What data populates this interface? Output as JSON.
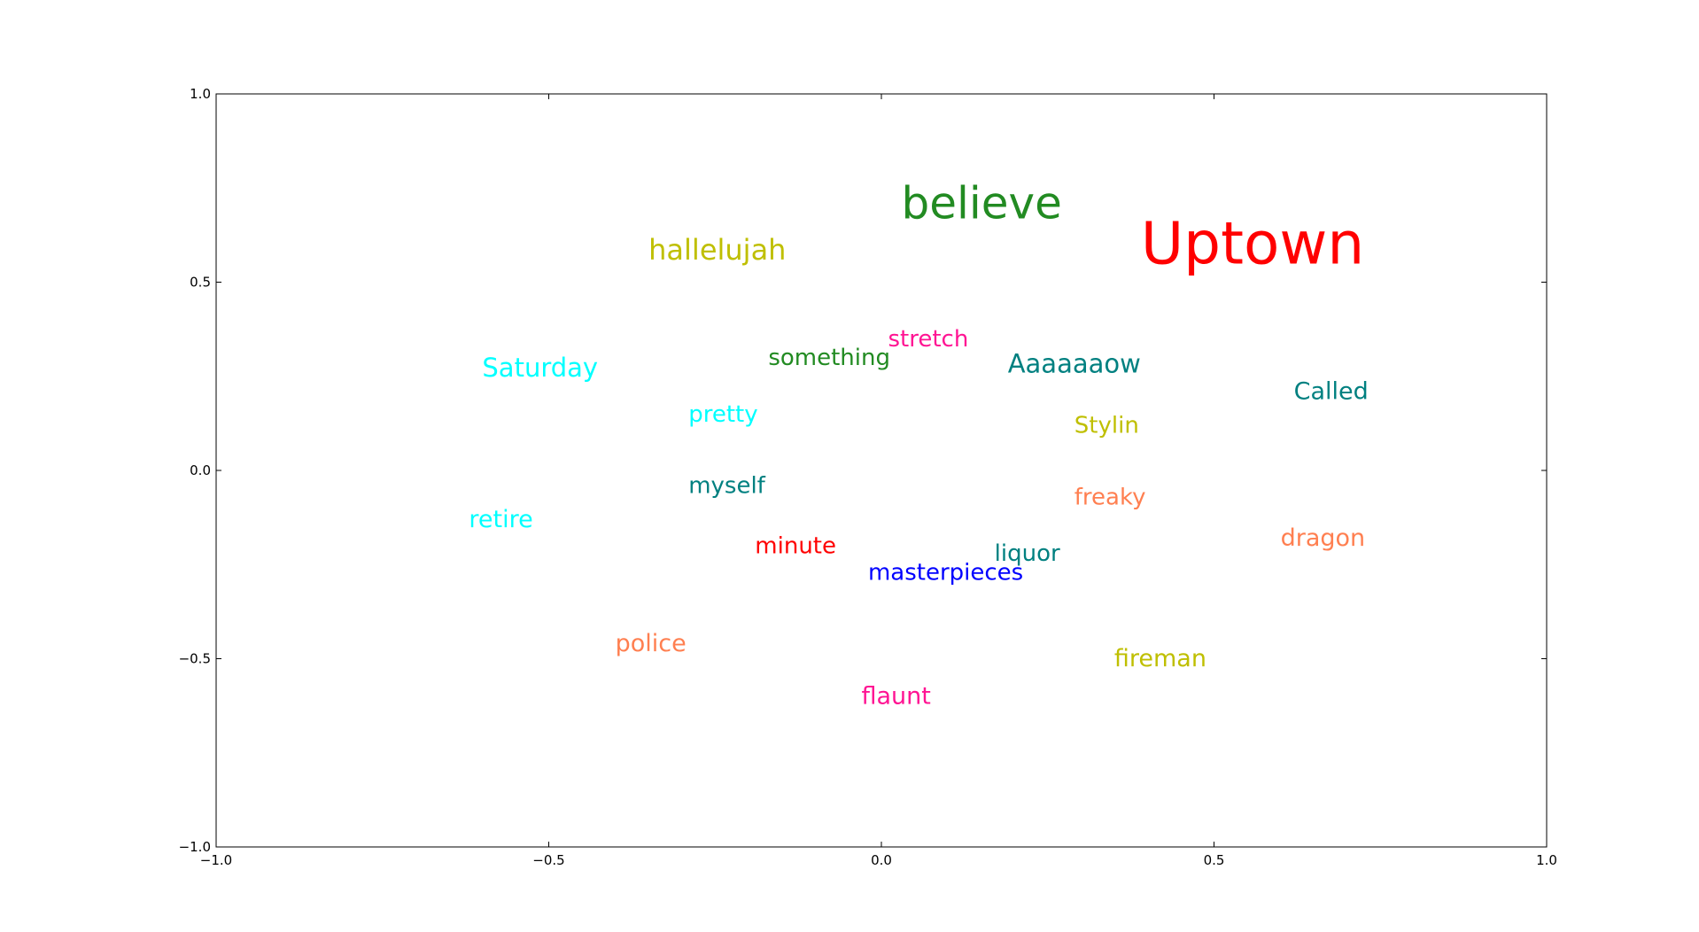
{
  "chart_data": {
    "type": "scatter",
    "title": "",
    "xlabel": "",
    "ylabel": "",
    "xlim": [
      -1.0,
      1.0
    ],
    "ylim": [
      -1.0,
      1.0
    ],
    "grid": false,
    "x_ticks": [
      -1.0,
      -0.5,
      0.0,
      0.5,
      1.0
    ],
    "y_ticks": [
      -1.0,
      -0.5,
      0.0,
      0.5,
      1.0
    ],
    "x_tick_labels": [
      "−1.0",
      "−0.5",
      "0.0",
      "0.5",
      "1.0"
    ],
    "y_tick_labels": [
      "−1.0",
      "−0.5",
      "0.0",
      "0.5",
      "1.0"
    ],
    "points": [
      {
        "label": "believe",
        "x": 0.03,
        "y": 0.67,
        "size": 50,
        "color": "#228b22"
      },
      {
        "label": "Uptown",
        "x": 0.39,
        "y": 0.55,
        "size": 66,
        "color": "#ff0000"
      },
      {
        "label": "hallelujah",
        "x": -0.35,
        "y": 0.56,
        "size": 32,
        "color": "#bfbf00"
      },
      {
        "label": "stretch",
        "x": 0.01,
        "y": 0.33,
        "size": 26,
        "color": "#ff1493"
      },
      {
        "label": "something",
        "x": -0.17,
        "y": 0.28,
        "size": 26,
        "color": "#228b22"
      },
      {
        "label": "Aaaaaaow",
        "x": 0.19,
        "y": 0.26,
        "size": 29,
        "color": "#008080"
      },
      {
        "label": "Saturday",
        "x": -0.6,
        "y": 0.25,
        "size": 29,
        "color": "#00ffff"
      },
      {
        "label": "Called",
        "x": 0.62,
        "y": 0.19,
        "size": 27,
        "color": "#008080"
      },
      {
        "label": "pretty",
        "x": -0.29,
        "y": 0.13,
        "size": 26,
        "color": "#00ffff"
      },
      {
        "label": "Stylin",
        "x": 0.29,
        "y": 0.1,
        "size": 26,
        "color": "#bfbf00"
      },
      {
        "label": "myself",
        "x": -0.29,
        "y": -0.06,
        "size": 26,
        "color": "#008080"
      },
      {
        "label": "freaky",
        "x": 0.29,
        "y": -0.09,
        "size": 26,
        "color": "#ff7f50"
      },
      {
        "label": "retire",
        "x": -0.62,
        "y": -0.15,
        "size": 27,
        "color": "#00ffff"
      },
      {
        "label": "dragon",
        "x": 0.6,
        "y": -0.2,
        "size": 27,
        "color": "#ff7f50"
      },
      {
        "label": "minute",
        "x": -0.19,
        "y": -0.22,
        "size": 26,
        "color": "#ff0000"
      },
      {
        "label": "liquor",
        "x": 0.17,
        "y": -0.24,
        "size": 26,
        "color": "#008080"
      },
      {
        "label": "masterpieces",
        "x": -0.02,
        "y": -0.29,
        "size": 26,
        "color": "#0000ff"
      },
      {
        "label": "police",
        "x": -0.4,
        "y": -0.48,
        "size": 27,
        "color": "#ff7f50"
      },
      {
        "label": "fireman",
        "x": 0.35,
        "y": -0.52,
        "size": 27,
        "color": "#bfbf00"
      },
      {
        "label": "flaunt",
        "x": -0.03,
        "y": -0.62,
        "size": 27,
        "color": "#ff1493"
      }
    ]
  }
}
